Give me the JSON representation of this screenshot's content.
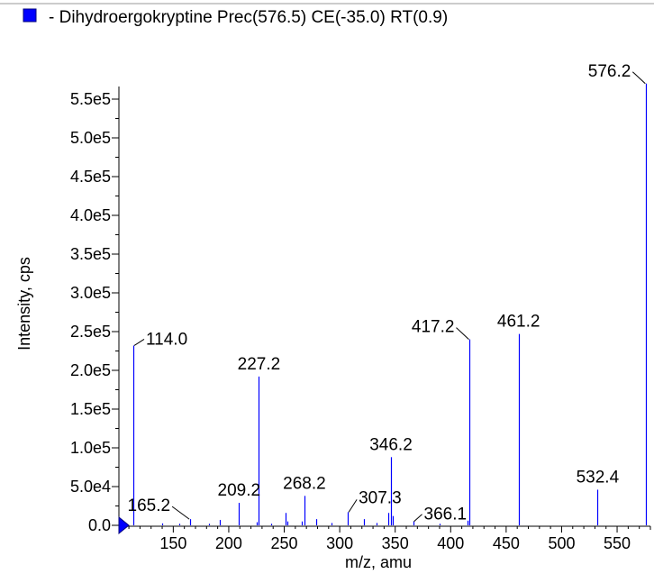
{
  "chart_data": {
    "type": "bar",
    "series": [
      {
        "name": "- Dihydroergokryptine Prec(576.5) CE(-35.0) RT(0.9)",
        "color": "#0000ff"
      }
    ],
    "xlabel": "m/z, amu",
    "ylabel": "Intensity, cps",
    "xlim": [
      101,
      580
    ],
    "ylim": [
      0,
      575000
    ],
    "x_ticks": [
      150,
      200,
      250,
      300,
      350,
      400,
      450,
      500,
      550
    ],
    "x_tick_labels": [
      "150",
      "200",
      "250",
      "300",
      "350",
      "400",
      "450",
      "500",
      "550"
    ],
    "y_ticks": [
      0,
      50000,
      100000,
      150000,
      200000,
      250000,
      300000,
      350000,
      400000,
      450000,
      500000,
      550000
    ],
    "y_tick_labels": [
      "0.0",
      "5.0e4",
      "1.0e5",
      "1.5e5",
      "2.0e5",
      "2.5e5",
      "3.0e5",
      "3.5e5",
      "4.0e5",
      "4.5e5",
      "5.0e5",
      "5.5e5"
    ],
    "peaks": [
      {
        "mz": 114.0,
        "intensity": 232000,
        "label": "114.0"
      },
      {
        "mz": 140.0,
        "intensity": 2500
      },
      {
        "mz": 155.0,
        "intensity": 2000
      },
      {
        "mz": 165.2,
        "intensity": 8000,
        "label": "165.2"
      },
      {
        "mz": 182.0,
        "intensity": 2000
      },
      {
        "mz": 192.0,
        "intensity": 7000
      },
      {
        "mz": 209.2,
        "intensity": 29000,
        "label": "209.2"
      },
      {
        "mz": 225.0,
        "intensity": 4000
      },
      {
        "mz": 227.2,
        "intensity": 192000,
        "label": "227.2"
      },
      {
        "mz": 238.0,
        "intensity": 2000
      },
      {
        "mz": 251.0,
        "intensity": 16000
      },
      {
        "mz": 253.0,
        "intensity": 5000
      },
      {
        "mz": 266.0,
        "intensity": 5000
      },
      {
        "mz": 268.2,
        "intensity": 38000,
        "label": "268.2"
      },
      {
        "mz": 279.0,
        "intensity": 8000
      },
      {
        "mz": 293.0,
        "intensity": 3000
      },
      {
        "mz": 307.3,
        "intensity": 17000,
        "label": "307.3"
      },
      {
        "mz": 322.0,
        "intensity": 8000
      },
      {
        "mz": 333.0,
        "intensity": 3000
      },
      {
        "mz": 344.0,
        "intensity": 16000
      },
      {
        "mz": 346.2,
        "intensity": 88000,
        "label": "346.2"
      },
      {
        "mz": 348.0,
        "intensity": 12000
      },
      {
        "mz": 366.1,
        "intensity": 5000,
        "label": "366.1"
      },
      {
        "mz": 390.0,
        "intensity": 2000
      },
      {
        "mz": 415.0,
        "intensity": 6000
      },
      {
        "mz": 417.2,
        "intensity": 240000,
        "label": "417.2"
      },
      {
        "mz": 461.2,
        "intensity": 247000,
        "label": "461.2"
      },
      {
        "mz": 532.4,
        "intensity": 46000,
        "label": "532.4"
      },
      {
        "mz": 576.2,
        "intensity": 570000,
        "label": "576.2"
      }
    ],
    "grid": false,
    "legend_position": "top-left"
  }
}
